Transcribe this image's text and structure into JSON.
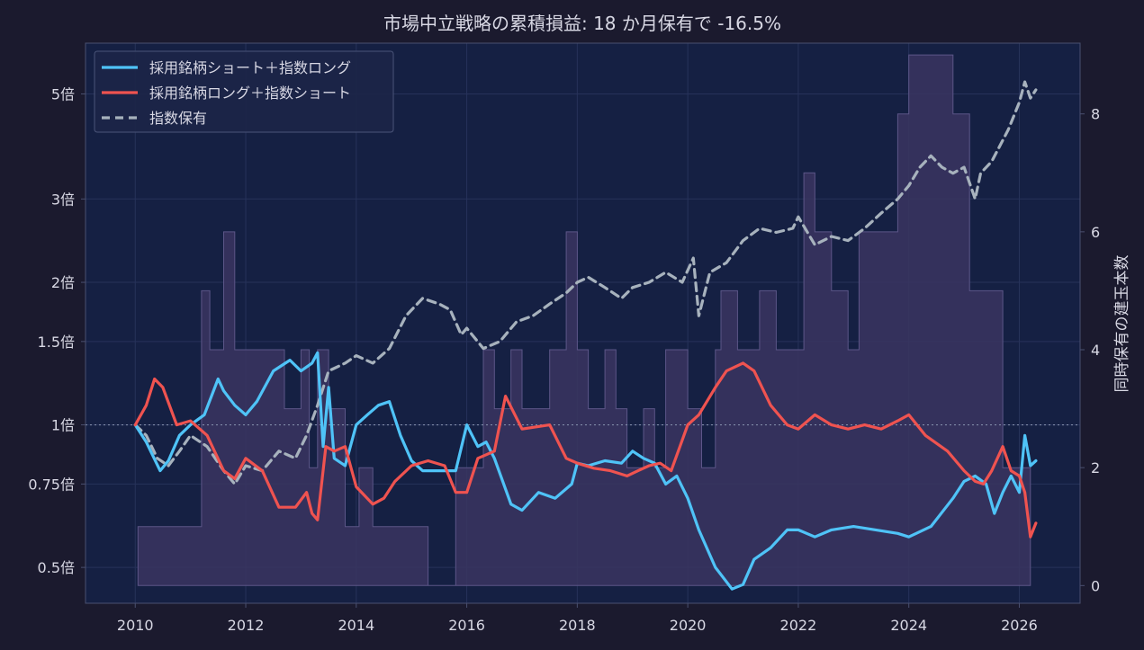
{
  "colors": {
    "page_bg": "#1b1a2e",
    "plot_bg": "#152043",
    "axis": "#4a5070",
    "text": "#d8d8e4",
    "bars": "#3a3560",
    "bars_edge": "#5c5688",
    "short_pick": "#4fc3f7",
    "long_pick": "#ef5350",
    "index": "#a7b2bd",
    "reference": "#7f8aa6"
  },
  "chart_data": {
    "type": "line",
    "title": "市場中立戦略の累積損益: 18 か月保有で -16.5%",
    "xlabel": "",
    "ylabel": "",
    "y2label": "同時保有の建玉本数",
    "y_scale": "log",
    "xlim": [
      2009.1,
      2027.1
    ],
    "ylim": [
      0.42,
      6.4
    ],
    "y2lim": [
      -0.3,
      9.2
    ],
    "x_ticks": [
      2010,
      2012,
      2014,
      2016,
      2018,
      2020,
      2022,
      2024,
      2026
    ],
    "x_tick_labels": [
      "2010",
      "2012",
      "2014",
      "2016",
      "2018",
      "2020",
      "2022",
      "2024",
      "2026"
    ],
    "y_ticks": [
      0.5,
      0.75,
      1,
      1.5,
      2,
      3,
      5
    ],
    "y_tick_labels": [
      "0.5倍",
      "0.75倍",
      "1倍",
      "1.5倍",
      "2倍",
      "3倍",
      "5倍"
    ],
    "y2_ticks": [
      0,
      2,
      4,
      6,
      8
    ],
    "y2_tick_labels": [
      "0",
      "2",
      "4",
      "6",
      "8"
    ],
    "reference_line": 1,
    "grid": true,
    "legend_position": "top-left",
    "series": [
      {
        "name": "採用銘柄ショート＋指数ロング",
        "style": "solid",
        "x": [
          2010.0,
          2010.2,
          2010.45,
          2010.6,
          2010.8,
          2011.0,
          2011.25,
          2011.5,
          2011.6,
          2011.8,
          2012.0,
          2012.2,
          2012.5,
          2012.8,
          2013.0,
          2013.2,
          2013.3,
          2013.4,
          2013.5,
          2013.6,
          2013.8,
          2014.0,
          2014.2,
          2014.4,
          2014.6,
          2014.8,
          2015.0,
          2015.2,
          2015.5,
          2015.8,
          2016.0,
          2016.2,
          2016.35,
          2016.5,
          2016.8,
          2017.0,
          2017.3,
          2017.6,
          2017.9,
          2018.0,
          2018.2,
          2018.5,
          2018.8,
          2019.0,
          2019.2,
          2019.4,
          2019.6,
          2019.8,
          2020.0,
          2020.2,
          2020.5,
          2020.8,
          2021.0,
          2021.2,
          2021.5,
          2021.8,
          2022.0,
          2022.3,
          2022.6,
          2023.0,
          2023.4,
          2023.8,
          2024.0,
          2024.4,
          2024.8,
          2025.0,
          2025.2,
          2025.4,
          2025.55,
          2025.7,
          2025.85,
          2026.0,
          2026.1,
          2026.2,
          2026.3
        ],
        "y": [
          1.0,
          0.92,
          0.8,
          0.84,
          0.95,
          1.0,
          1.05,
          1.25,
          1.18,
          1.1,
          1.05,
          1.12,
          1.3,
          1.37,
          1.3,
          1.35,
          1.42,
          0.9,
          1.2,
          0.85,
          0.82,
          1.0,
          1.05,
          1.1,
          1.12,
          0.95,
          0.84,
          0.8,
          0.8,
          0.8,
          1.0,
          0.9,
          0.92,
          0.85,
          0.68,
          0.66,
          0.72,
          0.7,
          0.75,
          0.83,
          0.82,
          0.84,
          0.83,
          0.88,
          0.85,
          0.83,
          0.75,
          0.78,
          0.7,
          0.6,
          0.5,
          0.45,
          0.46,
          0.52,
          0.55,
          0.6,
          0.6,
          0.58,
          0.6,
          0.61,
          0.6,
          0.59,
          0.58,
          0.61,
          0.7,
          0.76,
          0.78,
          0.75,
          0.65,
          0.72,
          0.78,
          0.72,
          0.95,
          0.82,
          0.84
        ]
      },
      {
        "name": "採用銘柄ロング＋指数ショート",
        "style": "solid",
        "x": [
          2010.0,
          2010.2,
          2010.35,
          2010.5,
          2010.75,
          2011.0,
          2011.3,
          2011.6,
          2011.8,
          2012.0,
          2012.3,
          2012.6,
          2012.9,
          2013.1,
          2013.2,
          2013.3,
          2013.45,
          2013.6,
          2013.8,
          2014.0,
          2014.3,
          2014.5,
          2014.7,
          2015.0,
          2015.3,
          2015.6,
          2015.8,
          2016.0,
          2016.2,
          2016.5,
          2016.7,
          2017.0,
          2017.5,
          2017.8,
          2018.0,
          2018.3,
          2018.6,
          2018.9,
          2019.1,
          2019.3,
          2019.5,
          2019.7,
          2020.0,
          2020.2,
          2020.5,
          2020.7,
          2021.0,
          2021.2,
          2021.5,
          2021.8,
          2022.0,
          2022.3,
          2022.6,
          2022.9,
          2023.2,
          2023.5,
          2023.8,
          2024.0,
          2024.3,
          2024.7,
          2025.0,
          2025.2,
          2025.35,
          2025.5,
          2025.7,
          2025.85,
          2026.0,
          2026.1,
          2026.2,
          2026.3
        ],
        "y": [
          1.0,
          1.1,
          1.25,
          1.2,
          1.0,
          1.02,
          0.95,
          0.8,
          0.77,
          0.85,
          0.8,
          0.67,
          0.67,
          0.72,
          0.65,
          0.63,
          0.9,
          0.88,
          0.9,
          0.74,
          0.68,
          0.7,
          0.76,
          0.82,
          0.84,
          0.82,
          0.72,
          0.72,
          0.85,
          0.88,
          1.15,
          0.98,
          1.0,
          0.85,
          0.83,
          0.81,
          0.8,
          0.78,
          0.8,
          0.82,
          0.83,
          0.8,
          1.0,
          1.05,
          1.2,
          1.3,
          1.35,
          1.3,
          1.1,
          1.0,
          0.98,
          1.05,
          1.0,
          0.98,
          1.0,
          0.98,
          1.02,
          1.05,
          0.95,
          0.88,
          0.8,
          0.76,
          0.75,
          0.8,
          0.9,
          0.8,
          0.78,
          0.72,
          0.58,
          0.62
        ]
      },
      {
        "name": "指数保有",
        "style": "dashed",
        "x": [
          2010.0,
          2010.2,
          2010.4,
          2010.6,
          2010.8,
          2011.0,
          2011.3,
          2011.6,
          2011.8,
          2012.0,
          2012.3,
          2012.6,
          2012.9,
          2013.1,
          2013.3,
          2013.5,
          2013.8,
          2014.0,
          2014.3,
          2014.6,
          2014.9,
          2015.2,
          2015.5,
          2015.7,
          2015.9,
          2016.0,
          2016.3,
          2016.6,
          2016.9,
          2017.2,
          2017.5,
          2017.8,
          2018.0,
          2018.2,
          2018.5,
          2018.8,
          2019.0,
          2019.3,
          2019.6,
          2019.9,
          2020.1,
          2020.2,
          2020.4,
          2020.7,
          2021.0,
          2021.3,
          2021.6,
          2021.9,
          2022.0,
          2022.3,
          2022.6,
          2022.9,
          2023.2,
          2023.5,
          2023.8,
          2024.0,
          2024.2,
          2024.4,
          2024.6,
          2024.8,
          2025.0,
          2025.2,
          2025.3,
          2025.5,
          2025.8,
          2026.0,
          2026.1,
          2026.2,
          2026.3
        ],
        "y": [
          1.0,
          0.95,
          0.85,
          0.82,
          0.88,
          0.95,
          0.9,
          0.8,
          0.75,
          0.82,
          0.8,
          0.88,
          0.85,
          0.95,
          1.1,
          1.3,
          1.35,
          1.4,
          1.35,
          1.45,
          1.7,
          1.85,
          1.8,
          1.75,
          1.55,
          1.6,
          1.45,
          1.5,
          1.65,
          1.7,
          1.8,
          1.9,
          2.0,
          2.05,
          1.95,
          1.85,
          1.95,
          2.0,
          2.1,
          2.0,
          2.25,
          1.7,
          2.1,
          2.2,
          2.45,
          2.6,
          2.55,
          2.6,
          2.75,
          2.4,
          2.5,
          2.45,
          2.6,
          2.8,
          3.0,
          3.2,
          3.5,
          3.7,
          3.5,
          3.4,
          3.5,
          3.0,
          3.4,
          3.6,
          4.2,
          4.8,
          5.3,
          4.9,
          5.1
        ]
      }
    ],
    "holdings": {
      "name": "同時保有の建玉本数",
      "x": [
        2010.05,
        2010.7,
        2011.2,
        2011.35,
        2011.6,
        2011.8,
        2012.2,
        2012.4,
        2012.7,
        2013.0,
        2013.15,
        2013.3,
        2013.5,
        2013.8,
        2014.05,
        2014.3,
        2014.5,
        2015.0,
        2015.3,
        2015.8,
        2016.0,
        2016.3,
        2016.5,
        2016.8,
        2017.0,
        2017.3,
        2017.5,
        2017.8,
        2018.0,
        2018.2,
        2018.5,
        2018.7,
        2018.9,
        2019.2,
        2019.4,
        2019.6,
        2019.8,
        2020.0,
        2020.25,
        2020.5,
        2020.6,
        2020.9,
        2021.1,
        2021.3,
        2021.6,
        2021.8,
        2022.1,
        2022.3,
        2022.6,
        2022.9,
        2023.1,
        2023.4,
        2023.8,
        2024.0,
        2024.3,
        2024.8,
        2025.1,
        2025.4,
        2025.7,
        2026.0,
        2026.2
      ],
      "y": [
        1,
        1,
        5,
        4,
        6,
        4,
        4,
        4,
        3,
        4,
        2,
        4,
        3,
        1,
        2,
        1,
        1,
        1,
        0,
        2,
        2,
        4,
        3,
        4,
        3,
        3,
        4,
        6,
        4,
        3,
        4,
        3,
        2,
        3,
        2,
        4,
        4,
        3,
        2,
        4,
        5,
        4,
        4,
        5,
        4,
        4,
        7,
        6,
        5,
        4,
        6,
        6,
        8,
        9,
        9,
        8,
        5,
        5,
        2,
        2,
        0
      ]
    }
  }
}
